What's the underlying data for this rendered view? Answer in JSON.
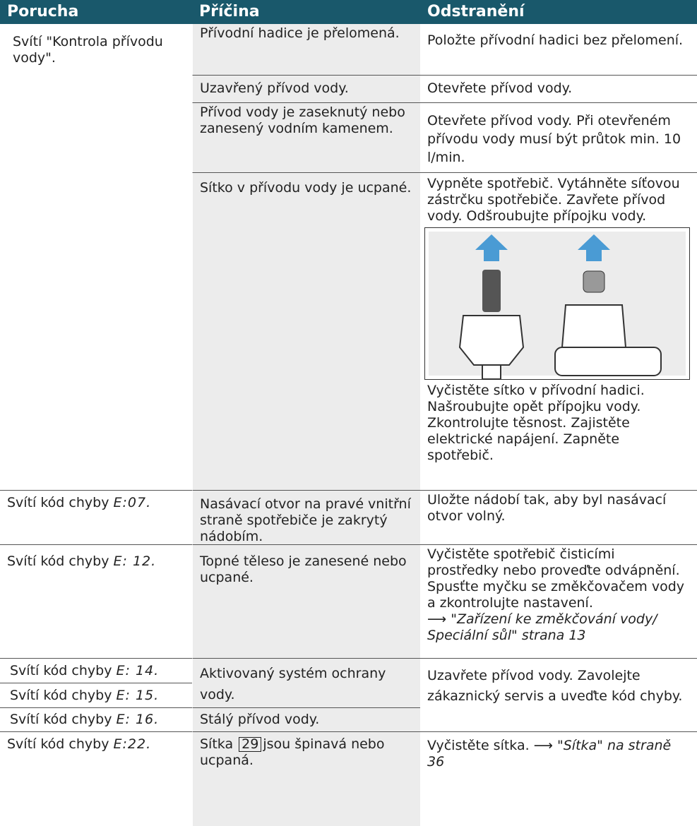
{
  "header": [
    "Porucha",
    "Příčina",
    "Odstranění"
  ],
  "rows": [
    {
      "fault": "Svítí \"Kontrola přívodu vody\".",
      "causes": [
        "Přívodní hadice je přelomená.",
        "Uzavřený přívod vody.",
        "Přívod vody je zaseknutý nebo zanesený vodním kamenem.",
        "Sítko v přívodu vody je ucpané."
      ],
      "remedies": [
        "Položte přívodní hadici bez přelomení.",
        "Otevřete přívod vody.",
        "Otevřete přívod vody. Při otevřeném přívodu vody musí být průtok min. 10 l/min.",
        "Vypněte spotřebič. Vytáhněte síťovou zástrčku spotřebiče. Zavřete přívod vody. Odšroubujte přípojku vody.",
        "Vyčistěte sítko v přívodní hadici. Našroubujte opět přípojku vody. Zkontrolujte těsnost. Zajistěte elektrické napájení. Zapněte spotřebič."
      ]
    },
    {
      "fault": "Svítí kód chyby",
      "code": "E:07.",
      "cause": "Nasávací otvor na pravé vnitřní straně spotřebiče je zakrytý nádobím.",
      "remedy": "Uložte nádobí tak, aby byl nasávací otvor volný."
    },
    {
      "fault": "Svítí kód chyby",
      "code": "E: 12.",
      "cause": "Topné těleso je zanesené nebo ucpané.",
      "remedy": "Vyčistěte spotřebič čisticími prostředky nebo proveďte odvápnění. Spusťte myčku se změkčovačem vody a zkontrolujte nastavení.",
      "link": "⟶ \"Zařízení ke změkčování vody/ Speciální sůl\" strana 13"
    },
    {
      "faults": [
        {
          "fault": "Svítí kód chyby",
          "code": "E: 14."
        },
        {
          "fault": "Svítí kód chyby",
          "code": "E: 15."
        },
        {
          "fault": "Svítí kód chyby",
          "code": "E: 16."
        }
      ],
      "causes": [
        "Aktivovaný systém ochrany vody.",
        "Stálý přívod vody."
      ],
      "remedy": "Uzavřete přívod vody. Zavolejte zákaznický servis a uveďte kód chyby."
    },
    {
      "fault": "Svítí kód chyby",
      "code": "E:22.",
      "cause_start": "Sítka",
      "ref": "29",
      "cause_end": "jsou špinavá nebo ucpaná.",
      "remedy": "Vyčistěte sítka. ⟶",
      "link": "\"Sítka\" na straně 36"
    }
  ]
}
